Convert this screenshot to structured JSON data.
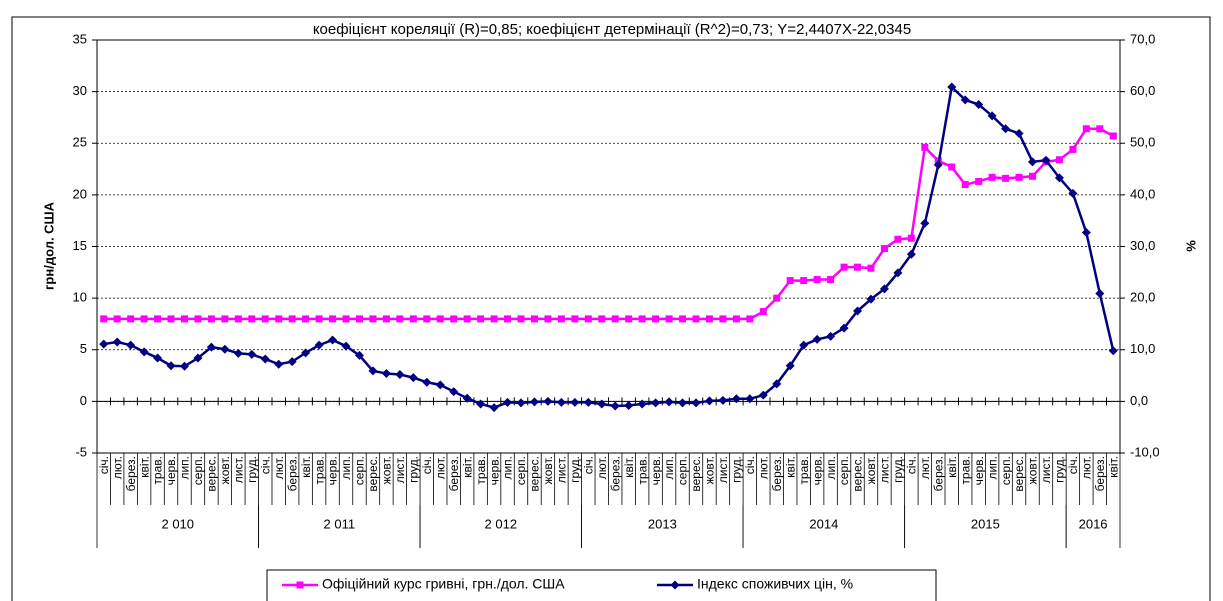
{
  "chart_data": {
    "type": "line",
    "title": "коефіцієнт кореляції (R)=0,85; коефіцієнт детермінації (R^2)=0,73; Y=2,4407X-22,0345",
    "ylabel": "грн/дол. США",
    "y2label": "%",
    "categories": [
      "січ.",
      "лют.",
      "берез.",
      "квіт.",
      "трав.",
      "черв.",
      "лип.",
      "серп.",
      "верес.",
      "жовт.",
      "лист.",
      "груд.",
      "січ.",
      "лют.",
      "берез.",
      "квіт.",
      "трав.",
      "черв.",
      "лип.",
      "серп.",
      "верес.",
      "жовт.",
      "лист.",
      "груд.",
      "січ.",
      "лют.",
      "берез.",
      "квіт.",
      "трав.",
      "черв.",
      "лип.",
      "серп.",
      "верес.",
      "жовт.",
      "лист.",
      "груд.",
      "січ.",
      "лют.",
      "берез.",
      "квіт.",
      "трав.",
      "черв.",
      "лип.",
      "серп.",
      "верес.",
      "жовт.",
      "лист.",
      "груд.",
      "січ.",
      "лют.",
      "берез.",
      "квіт.",
      "трав.",
      "черв.",
      "лип.",
      "серп.",
      "верес.",
      "жовт.",
      "лист.",
      "груд.",
      "січ.",
      "лют.",
      "берез.",
      "квіт.",
      "трав.",
      "черв.",
      "лип.",
      "серп.",
      "верес.",
      "жовт.",
      "лист.",
      "груд.",
      "січ.",
      "лют.",
      "берез.",
      "квіт."
    ],
    "category_groups": [
      {
        "label": "2 010",
        "size": 12
      },
      {
        "label": "2 011",
        "size": 12
      },
      {
        "label": "2 012",
        "size": 12
      },
      {
        "label": "2013",
        "size": 12
      },
      {
        "label": "2014",
        "size": 12
      },
      {
        "label": "2015",
        "size": 12
      },
      {
        "label": "2016",
        "size": 4
      }
    ],
    "ylim": [
      -5,
      35
    ],
    "yticks": [
      -5,
      0,
      5,
      10,
      15,
      20,
      25,
      30,
      35
    ],
    "y2lim": [
      -10,
      70
    ],
    "y2ticks": [
      {
        "value": -10,
        "label": "-10,0"
      },
      {
        "value": 0,
        "label": "0,0"
      },
      {
        "value": 10,
        "label": "10,0"
      },
      {
        "value": 20,
        "label": "20,0"
      },
      {
        "value": 30,
        "label": "30,0"
      },
      {
        "value": 40,
        "label": "40,0"
      },
      {
        "value": 50,
        "label": "50,0"
      },
      {
        "value": 60,
        "label": "60,0"
      },
      {
        "value": 70,
        "label": "70,0"
      }
    ],
    "grid": true,
    "legend": "bottom",
    "series": [
      {
        "name": "Офіційний курс гривні, грн./дол. США",
        "color": "#ff00ff",
        "marker": "square",
        "values": [
          7.99,
          7.99,
          7.99,
          7.99,
          7.99,
          7.99,
          7.99,
          7.99,
          7.99,
          7.99,
          7.99,
          7.99,
          7.99,
          7.99,
          7.99,
          7.99,
          7.99,
          7.99,
          7.99,
          7.99,
          7.99,
          7.99,
          7.99,
          7.99,
          7.99,
          7.99,
          7.99,
          7.99,
          7.99,
          7.99,
          7.99,
          7.99,
          7.99,
          7.99,
          7.99,
          7.99,
          7.99,
          7.99,
          7.99,
          7.99,
          7.99,
          7.99,
          7.99,
          7.99,
          7.99,
          7.99,
          7.99,
          7.99,
          7.99,
          8.7,
          10.0,
          11.7,
          11.7,
          11.8,
          11.8,
          13.0,
          13.0,
          12.9,
          14.8,
          15.7,
          15.8,
          24.6,
          23.3,
          22.7,
          21.0,
          21.3,
          21.7,
          21.6,
          21.7,
          21.8,
          23.2,
          23.4,
          24.4,
          26.4,
          26.4,
          25.7
        ]
      },
      {
        "name": "Індекс споживчих цін, %",
        "color": "#000080",
        "marker": "diamond",
        "axis": "y2",
        "values": [
          11.1,
          11.5,
          10.9,
          9.6,
          8.4,
          6.9,
          6.8,
          8.4,
          10.5,
          10.1,
          9.3,
          9.1,
          8.2,
          7.2,
          7.7,
          9.4,
          10.9,
          11.9,
          10.7,
          8.9,
          5.9,
          5.4,
          5.2,
          4.6,
          3.7,
          3.2,
          1.9,
          0.6,
          -0.5,
          -1.2,
          -0.2,
          -0.3,
          -0.1,
          0,
          -0.2,
          -0.2,
          -0.2,
          -0.5,
          -0.9,
          -0.8,
          -0.5,
          -0.3,
          -0.1,
          -0.3,
          -0.3,
          0.1,
          0.2,
          0.5,
          0.5,
          1.2,
          3.4,
          6.9,
          10.9,
          12.0,
          12.6,
          14.2,
          17.5,
          19.8,
          21.8,
          24.9,
          28.5,
          34.5,
          45.8,
          60.9,
          58.4,
          57.5,
          55.3,
          52.8,
          51.9,
          46.4,
          46.7,
          43.3,
          40.3,
          32.7,
          20.9,
          9.8
        ]
      }
    ]
  }
}
